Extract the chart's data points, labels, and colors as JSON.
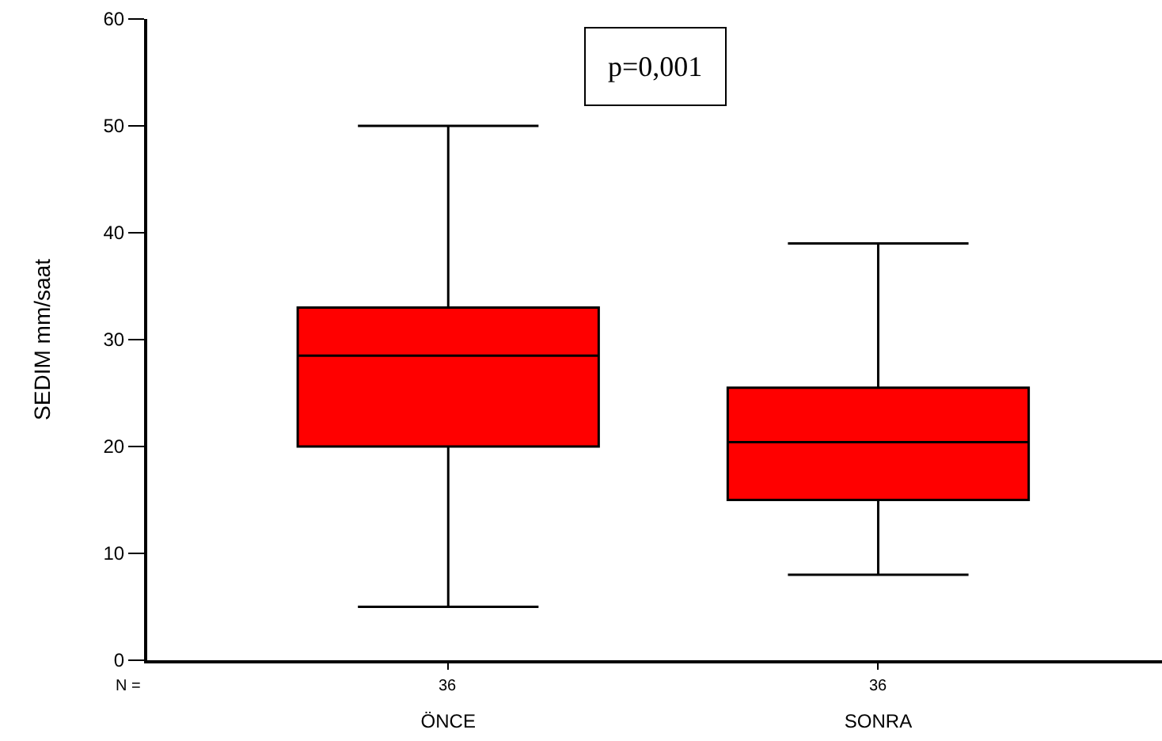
{
  "chart_data": {
    "type": "box",
    "ylabel": "SEDIM mm/saat",
    "categories": [
      "ÖNCE",
      "SONRA"
    ],
    "series": [
      {
        "color": "#ff0000",
        "boxes": [
          {
            "low": 5,
            "q1": 20,
            "median": 28.5,
            "q3": 33,
            "high": 50
          },
          {
            "low": 8,
            "q1": 15,
            "median": 20.4,
            "q3": 25.5,
            "high": 39
          }
        ]
      }
    ],
    "ylim": [
      0,
      60
    ],
    "yticks": [
      0,
      10,
      20,
      30,
      40,
      50,
      60
    ],
    "grid": false,
    "annotations": [
      "p=0,001",
      "N =",
      "36",
      "36"
    ]
  }
}
